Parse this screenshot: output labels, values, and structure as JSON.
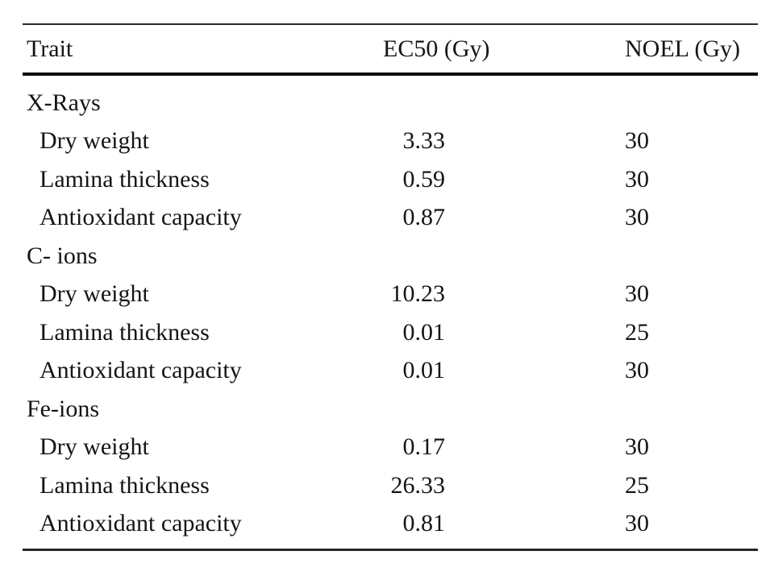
{
  "table": {
    "columns": [
      "Trait",
      "EC50 (Gy)",
      "NOEL (Gy)"
    ],
    "sections": [
      {
        "group": "X-Rays",
        "rows": [
          {
            "trait": "Dry weight",
            "ec50": "3.33",
            "noel": "30"
          },
          {
            "trait": "Lamina thickness",
            "ec50": "0.59",
            "noel": "30"
          },
          {
            "trait": "Antioxidant capacity",
            "ec50": "0.87",
            "noel": "30"
          }
        ]
      },
      {
        "group": "C- ions",
        "rows": [
          {
            "trait": "Dry weight",
            "ec50": "10.23",
            "noel": "30"
          },
          {
            "trait": "Lamina thickness",
            "ec50": "0.01",
            "noel": "25"
          },
          {
            "trait": "Antioxidant capacity",
            "ec50": "0.01",
            "noel": "30"
          }
        ]
      },
      {
        "group": "Fe-ions",
        "rows": [
          {
            "trait": "Dry weight",
            "ec50": "0.17",
            "noel": "30"
          },
          {
            "trait": "Lamina thickness",
            "ec50": "26.33",
            "noel": "25"
          },
          {
            "trait": "Antioxidant capacity",
            "ec50": "0.81",
            "noel": "30"
          }
        ]
      }
    ]
  },
  "colors": {
    "text": "#151515",
    "thin_rule": "#2a2a2a",
    "thick_rule": "#0a0a0a",
    "background": "#ffffff"
  },
  "chart_data": {
    "type": "table",
    "columns": [
      "Trait",
      "EC50 (Gy)",
      "NOEL (Gy)"
    ],
    "rows": [
      [
        "X-Rays",
        null,
        null
      ],
      [
        "Dry weight",
        3.33,
        30
      ],
      [
        "Lamina thickness",
        0.59,
        30
      ],
      [
        "Antioxidant capacity",
        0.87,
        30
      ],
      [
        "C- ions",
        null,
        null
      ],
      [
        "Dry weight",
        10.23,
        30
      ],
      [
        "Lamina thickness",
        0.01,
        25
      ],
      [
        "Antioxidant capacity",
        0.01,
        30
      ],
      [
        "Fe-ions",
        null,
        null
      ],
      [
        "Dry weight",
        0.17,
        30
      ],
      [
        "Lamina thickness",
        26.33,
        25
      ],
      [
        "Antioxidant capacity",
        0.81,
        30
      ]
    ]
  }
}
